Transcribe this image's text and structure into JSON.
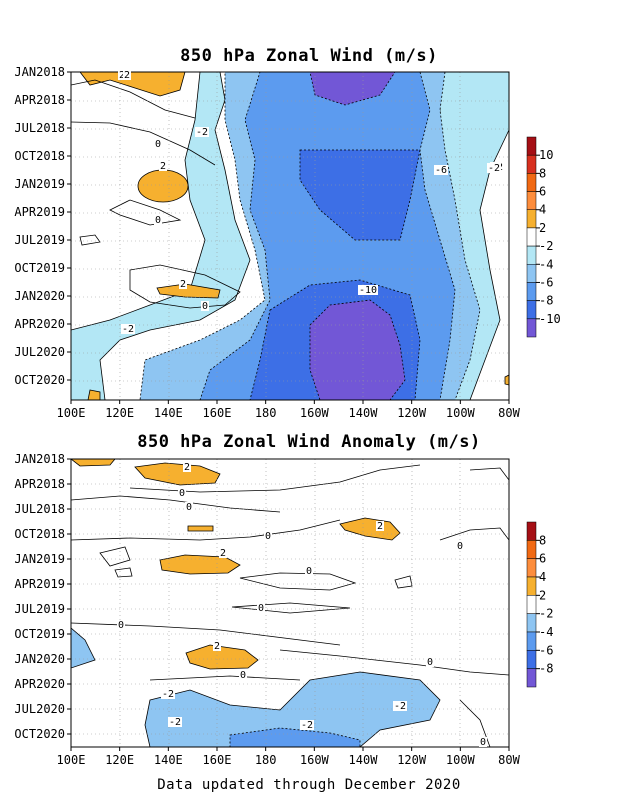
{
  "chart_data": [
    {
      "type": "heatmap",
      "title": "850 hPa Zonal Wind (m/s)",
      "x_ticks": [
        "100E",
        "120E",
        "140E",
        "160E",
        "180",
        "160W",
        "140W",
        "120W",
        "100W",
        "80W"
      ],
      "y_ticks": [
        "JAN2018",
        "APR2018",
        "JUL2018",
        "OCT2018",
        "JAN2019",
        "APR2019",
        "JUL2019",
        "OCT2019",
        "JAN2020",
        "APR2020",
        "JUL2020",
        "OCT2020"
      ],
      "colorbar": {
        "labels": [
          "10",
          "8",
          "6",
          "4",
          "2",
          "-2",
          "-4",
          "-6",
          "-8",
          "-10"
        ],
        "colors": [
          "#a50f15",
          "#d7301f",
          "#f16913",
          "#fd8d3c",
          "#f6b02f",
          "#ffffff",
          "#b3e7f5",
          "#8ec5f2",
          "#5c9bef",
          "#3d6fe6",
          "#7257d6"
        ]
      },
      "contour_labels": [
        "2",
        "2",
        "2",
        "0",
        "-2",
        "0",
        "-2",
        "2",
        "0",
        "-2",
        "-6",
        "-10",
        "-2"
      ],
      "grid": true
    },
    {
      "type": "heatmap",
      "title": "850 hPa Zonal Wind Anomaly (m/s)",
      "x_ticks": [
        "100E",
        "120E",
        "140E",
        "160E",
        "180",
        "160W",
        "140W",
        "120W",
        "100W",
        "80W"
      ],
      "y_ticks": [
        "JAN2018",
        "APR2018",
        "JUL2018",
        "OCT2018",
        "JAN2019",
        "APR2019",
        "JUL2019",
        "OCT2019",
        "JAN2020",
        "APR2020",
        "JUL2020",
        "OCT2020"
      ],
      "colorbar": {
        "labels": [
          "8",
          "6",
          "4",
          "2",
          "-2",
          "-4",
          "-6",
          "-8"
        ],
        "colors": [
          "#a50f15",
          "#f16913",
          "#fd8d3c",
          "#f6b02f",
          "#ffffff",
          "#8ec5f2",
          "#5c9bef",
          "#3d6fe6",
          "#7257d6"
        ]
      },
      "contour_labels": [
        "2",
        "0",
        "0",
        "2",
        "0",
        "2",
        "0",
        "0",
        "0",
        "0",
        "2",
        "0",
        "0",
        "-2",
        "-2",
        "-2",
        "-2",
        "0"
      ],
      "grid": true
    }
  ],
  "footer": "Data updated through December 2020"
}
